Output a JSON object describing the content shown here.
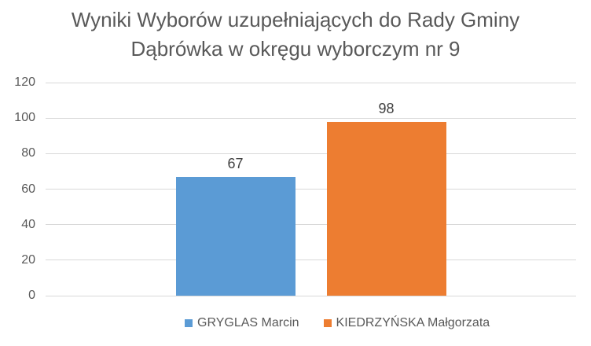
{
  "chart_data": {
    "type": "bar",
    "title": "Wyniki Wyborów uzupełniających do Rady Gminy Dąbrówka w okręgu wyborczym nr 9",
    "title_lines": [
      "Wyniki Wyborów uzupełniających do Rady Gminy",
      "Dąbrówka w okręgu wyborczym nr 9"
    ],
    "categories": [
      ""
    ],
    "series": [
      {
        "name": "GRYGLAS Marcin",
        "values": [
          67
        ],
        "color": "#5B9BD5"
      },
      {
        "name": "KIEDRZYŃSKA Małgorzata",
        "values": [
          98
        ],
        "color": "#ED7D31"
      }
    ],
    "data_labels": [
      67,
      98
    ],
    "xlabel": "",
    "ylabel": "",
    "ylim": [
      0,
      120
    ],
    "y_ticks": [
      0,
      20,
      40,
      60,
      80,
      100,
      120
    ],
    "grid": true,
    "legend_position": "bottom",
    "colors": {
      "background": "#FFFFFF",
      "gridline": "#D9D9D9",
      "title_text": "#595959",
      "axis_text": "#595959",
      "data_label_text": "#404040",
      "legend_text": "#595959"
    }
  }
}
